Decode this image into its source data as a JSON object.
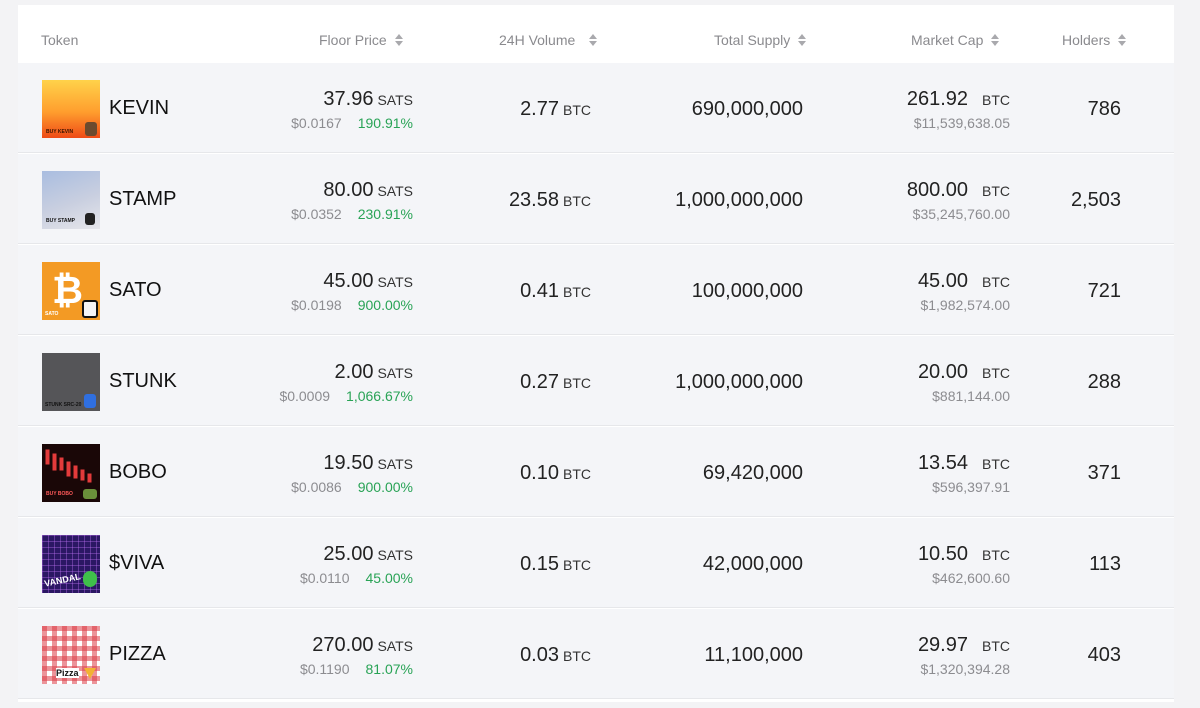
{
  "columns": {
    "token": "Token",
    "floor_price": "Floor Price",
    "volume": "24H Volume",
    "supply": "Total Supply",
    "market_cap": "Market Cap",
    "holders": "Holders"
  },
  "rows": [
    {
      "name": "KEVIN",
      "floor": "37.96",
      "floor_unit": "SATS",
      "floor_usd": "$0.0167",
      "change": "190.91%",
      "volume": "2.77",
      "volume_unit": "BTC",
      "supply": "690,000,000",
      "mcap": "261.92",
      "mcap_unit": "BTC",
      "mcap_usd": "$11,539,638.05",
      "holders": "786",
      "thumb_text": "BUY KEVIN"
    },
    {
      "name": "STAMP",
      "floor": "80.00",
      "floor_unit": "SATS",
      "floor_usd": "$0.0352",
      "change": "230.91%",
      "volume": "23.58",
      "volume_unit": "BTC",
      "supply": "1,000,000,000",
      "mcap": "800.00",
      "mcap_unit": "BTC",
      "mcap_usd": "$35,245,760.00",
      "holders": "2,503",
      "thumb_text": "BUY STAMP"
    },
    {
      "name": "SATO",
      "floor": "45.00",
      "floor_unit": "SATS",
      "floor_usd": "$0.0198",
      "change": "900.00%",
      "volume": "0.41",
      "volume_unit": "BTC",
      "supply": "100,000,000",
      "mcap": "45.00",
      "mcap_unit": "BTC",
      "mcap_usd": "$1,982,574.00",
      "holders": "721",
      "thumb_text": "SATO"
    },
    {
      "name": "STUNK",
      "floor": "2.00",
      "floor_unit": "SATS",
      "floor_usd": "$0.0009",
      "change": "1,066.67%",
      "volume": "0.27",
      "volume_unit": "BTC",
      "supply": "1,000,000,000",
      "mcap": "20.00",
      "mcap_unit": "BTC",
      "mcap_usd": "$881,144.00",
      "holders": "288",
      "thumb_text": "STUNK SRC-20"
    },
    {
      "name": "BOBO",
      "floor": "19.50",
      "floor_unit": "SATS",
      "floor_usd": "$0.0086",
      "change": "900.00%",
      "volume": "0.10",
      "volume_unit": "BTC",
      "supply": "69,420,000",
      "mcap": "13.54",
      "mcap_unit": "BTC",
      "mcap_usd": "$596,397.91",
      "holders": "371",
      "thumb_text": "BUY BOBO"
    },
    {
      "name": "$VIVA",
      "floor": "25.00",
      "floor_unit": "SATS",
      "floor_usd": "$0.0110",
      "change": "45.00%",
      "volume": "0.15",
      "volume_unit": "BTC",
      "supply": "42,000,000",
      "mcap": "10.50",
      "mcap_unit": "BTC",
      "mcap_usd": "$462,600.60",
      "holders": "113",
      "thumb_text": "VANDAL"
    },
    {
      "name": "PIZZA",
      "floor": "270.00",
      "floor_unit": "SATS",
      "floor_usd": "$0.1190",
      "change": "81.07%",
      "volume": "0.03",
      "volume_unit": "BTC",
      "supply": "11,100,000",
      "mcap": "29.97",
      "mcap_unit": "BTC",
      "mcap_usd": "$1,320,394.28",
      "holders": "403",
      "thumb_text": "Pizza"
    }
  ],
  "colors": {
    "positive": "#29a356",
    "muted": "#8c8c90",
    "row_bg": "#f4f5f8"
  },
  "icons": {
    "sort": "sort-updown-icon",
    "bitcoin": "bitcoin-icon"
  }
}
